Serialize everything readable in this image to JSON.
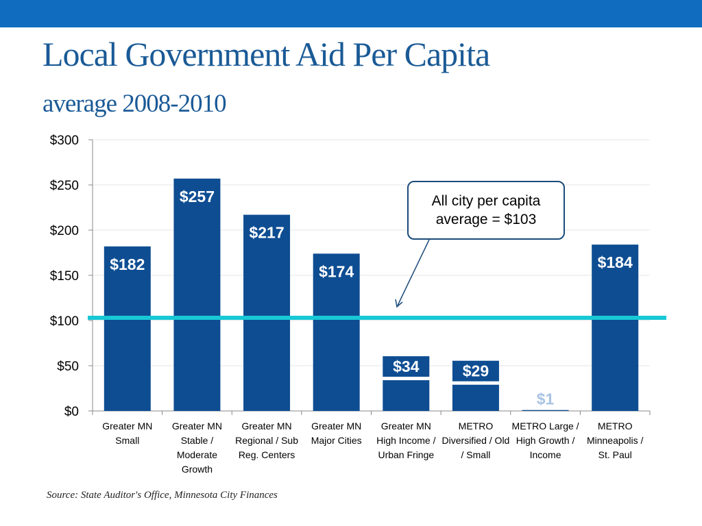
{
  "page": {
    "title": "Local Government Aid Per Capita",
    "subtitle": "average 2008-2010",
    "source": "Source: State Auditor's Office, Minnesota City Finances",
    "callout": "All city per capita average = $103"
  },
  "colors": {
    "header_bar": "#0f6cbf",
    "bar": "#0e4d92",
    "reference_line": "#19c8d6",
    "title": "#1a5a96"
  },
  "chart_data": {
    "type": "bar",
    "categories": [
      "Greater MN Small",
      "Greater MN Stable / Moderate Growth",
      "Greater MN Regional / Sub Reg. Centers",
      "Greater MN Major Cities",
      "Greater MN High Income / Urban Fringe",
      "METRO Diversified / Old / Small",
      "METRO Large / High Growth / Income",
      "METRO Minneapolis / St. Paul"
    ],
    "values": [
      182,
      257,
      217,
      174,
      34,
      29,
      1,
      184
    ],
    "data_labels": [
      "$182",
      "$257",
      "$217",
      "$174",
      "$34",
      "$29",
      "$1",
      "$184"
    ],
    "y_ticks": [
      "$0",
      "$50",
      "$100",
      "$150",
      "$200",
      "$250",
      "$300"
    ],
    "ylim": [
      0,
      300
    ],
    "reference_line": {
      "value": 103
    },
    "grid": true,
    "legend": "none"
  }
}
